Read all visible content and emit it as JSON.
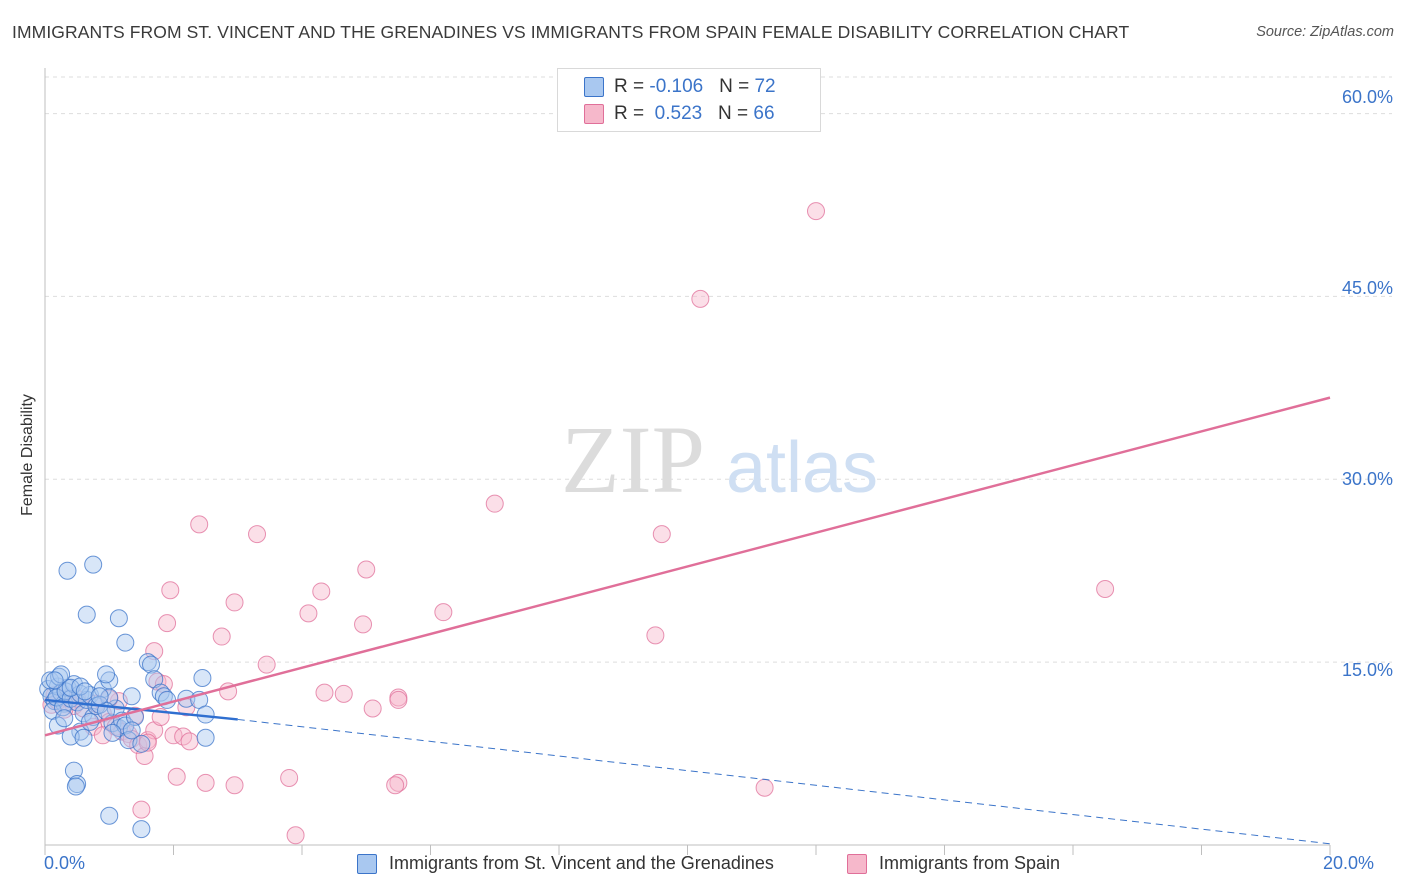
{
  "header": {
    "title": "IMMIGRANTS FROM ST. VINCENT AND THE GRENADINES VS IMMIGRANTS FROM SPAIN FEMALE DISABILITY CORRELATION CHART",
    "source": "Source: ZipAtlas.com"
  },
  "watermark": {
    "zip": "ZIP",
    "atlas": "atlas"
  },
  "legend": {
    "rows": [
      {
        "r_label": "R = ",
        "r_value": "-0.106",
        "n_label": "N = ",
        "n_value": "72",
        "color": "#a9c8f0"
      },
      {
        "r_label": "R = ",
        "r_value": "0.523",
        "n_label": "N = ",
        "n_value": "66",
        "color": "#f6b8cb"
      }
    ]
  },
  "bottom_legend": {
    "series1": "Immigrants from St. Vincent and the Grenadines",
    "series2": "Immigrants from Spain"
  },
  "chart_data": {
    "type": "scatter",
    "title": "IMMIGRANTS FROM ST. VINCENT AND THE GRENADINES VS IMMIGRANTS FROM SPAIN FEMALE DISABILITY CORRELATION CHART",
    "xlabel": "",
    "ylabel": "Female Disability",
    "xlim": [
      0,
      20
    ],
    "ylim": [
      0,
      63
    ],
    "x_tick_labels": [
      "0.0%",
      "20.0%"
    ],
    "y_ticks": [
      15,
      30,
      45,
      60
    ],
    "y_tick_labels": [
      "15.0%",
      "30.0%",
      "45.0%",
      "60.0%"
    ],
    "grid": true,
    "legend_position": "top-center",
    "series": [
      {
        "name": "Immigrants from St. Vincent and the Grenadines",
        "color": "#3b74c9",
        "fill": "#a9c8f0",
        "stats": {
          "R": -0.106,
          "N": 72
        },
        "trend": {
          "x0": 0,
          "y0": 11.9,
          "x1": 3.0,
          "y1": 10.3,
          "dash_to_x": 20.0,
          "dash_to_y": 0.1
        },
        "points": [
          [
            0.05,
            12.8
          ],
          [
            0.1,
            12.2
          ],
          [
            0.15,
            11.8
          ],
          [
            0.2,
            13.0
          ],
          [
            0.25,
            12.5
          ],
          [
            0.3,
            11.6
          ],
          [
            0.35,
            12.9
          ],
          [
            0.08,
            13.5
          ],
          [
            0.12,
            11.0
          ],
          [
            0.18,
            12.1
          ],
          [
            0.22,
            13.8
          ],
          [
            0.28,
            11.3
          ],
          [
            0.32,
            12.6
          ],
          [
            0.4,
            12.0
          ],
          [
            0.45,
            13.2
          ],
          [
            0.5,
            11.7
          ],
          [
            0.55,
            12.4
          ],
          [
            0.6,
            10.8
          ],
          [
            0.65,
            11.9
          ],
          [
            0.7,
            12.3
          ],
          [
            0.75,
            10.5
          ],
          [
            0.8,
            11.4
          ],
          [
            0.9,
            12.8
          ],
          [
            1.0,
            13.5
          ],
          [
            1.05,
            10.0
          ],
          [
            1.1,
            11.2
          ],
          [
            1.15,
            9.6
          ],
          [
            1.2,
            10.2
          ],
          [
            1.25,
            9.8
          ],
          [
            1.3,
            8.6
          ],
          [
            1.4,
            10.5
          ],
          [
            1.5,
            8.3
          ],
          [
            1.6,
            15.0
          ],
          [
            1.65,
            14.8
          ],
          [
            1.7,
            13.6
          ],
          [
            1.8,
            12.5
          ],
          [
            1.85,
            12.2
          ],
          [
            1.9,
            11.9
          ],
          [
            2.2,
            12.0
          ],
          [
            2.4,
            11.9
          ],
          [
            2.45,
            13.7
          ],
          [
            2.5,
            10.7
          ],
          [
            0.35,
            22.5
          ],
          [
            0.75,
            23.0
          ],
          [
            0.65,
            18.9
          ],
          [
            1.15,
            18.6
          ],
          [
            1.25,
            16.6
          ],
          [
            0.95,
            14.0
          ],
          [
            1.0,
            12.1
          ],
          [
            0.85,
            11.5
          ],
          [
            0.55,
            9.3
          ],
          [
            0.4,
            8.9
          ],
          [
            0.6,
            8.8
          ],
          [
            0.2,
            9.8
          ],
          [
            0.3,
            10.4
          ],
          [
            0.7,
            10.1
          ],
          [
            0.95,
            11.0
          ],
          [
            1.35,
            12.2
          ],
          [
            0.45,
            6.1
          ],
          [
            0.5,
            5.0
          ],
          [
            0.48,
            4.8
          ],
          [
            1.0,
            2.4
          ],
          [
            1.5,
            1.3
          ],
          [
            2.5,
            8.8
          ],
          [
            0.25,
            14.0
          ],
          [
            0.15,
            13.5
          ],
          [
            0.4,
            12.9
          ],
          [
            0.55,
            13.0
          ],
          [
            0.62,
            12.6
          ],
          [
            0.85,
            12.2
          ],
          [
            1.05,
            9.2
          ],
          [
            1.35,
            9.4
          ]
        ]
      },
      {
        "name": "Immigrants from Spain",
        "color": "#e06f99",
        "fill": "#f6b8cb",
        "stats": {
          "R": 0.523,
          "N": 66
        },
        "trend": {
          "x0": 0,
          "y0": 9.0,
          "x1": 20.0,
          "y1": 36.7
        },
        "points": [
          [
            12.0,
            52.0
          ],
          [
            10.2,
            44.8
          ],
          [
            7.0,
            28.0
          ],
          [
            9.6,
            25.5
          ],
          [
            2.4,
            26.3
          ],
          [
            3.3,
            25.5
          ],
          [
            5.0,
            22.6
          ],
          [
            16.5,
            21.0
          ],
          [
            1.95,
            20.9
          ],
          [
            2.95,
            19.9
          ],
          [
            4.3,
            20.8
          ],
          [
            4.1,
            19.0
          ],
          [
            6.2,
            19.1
          ],
          [
            1.9,
            18.2
          ],
          [
            4.95,
            18.1
          ],
          [
            9.5,
            17.2
          ],
          [
            2.75,
            17.1
          ],
          [
            1.7,
            15.9
          ],
          [
            3.45,
            14.8
          ],
          [
            1.75,
            13.4
          ],
          [
            2.85,
            12.6
          ],
          [
            4.35,
            12.5
          ],
          [
            4.65,
            12.4
          ],
          [
            5.5,
            12.1
          ],
          [
            5.5,
            11.9
          ],
          [
            5.1,
            11.2
          ],
          [
            2.2,
            11.3
          ],
          [
            0.1,
            11.5
          ],
          [
            0.2,
            11.8
          ],
          [
            0.35,
            12.0
          ],
          [
            0.45,
            11.4
          ],
          [
            0.6,
            11.2
          ],
          [
            0.8,
            11.6
          ],
          [
            0.9,
            10.8
          ],
          [
            1.0,
            10.1
          ],
          [
            1.1,
            9.7
          ],
          [
            1.2,
            9.3
          ],
          [
            1.3,
            9.1
          ],
          [
            1.35,
            8.7
          ],
          [
            1.45,
            8.2
          ],
          [
            1.55,
            7.3
          ],
          [
            1.6,
            8.6
          ],
          [
            1.7,
            9.4
          ],
          [
            1.8,
            10.5
          ],
          [
            1.85,
            13.2
          ],
          [
            0.75,
            9.7
          ],
          [
            0.9,
            9.0
          ],
          [
            2.0,
            9.0
          ],
          [
            2.15,
            8.9
          ],
          [
            2.25,
            8.5
          ],
          [
            0.15,
            12.3
          ],
          [
            0.3,
            11.1
          ],
          [
            1.15,
            11.8
          ],
          [
            1.4,
            10.6
          ],
          [
            1.6,
            8.4
          ],
          [
            2.05,
            5.6
          ],
          [
            2.5,
            5.1
          ],
          [
            2.95,
            4.9
          ],
          [
            3.8,
            5.5
          ],
          [
            5.5,
            5.1
          ],
          [
            5.45,
            4.9
          ],
          [
            11.2,
            4.7
          ],
          [
            1.5,
            2.9
          ],
          [
            3.9,
            0.8
          ],
          [
            0.5,
            12.0
          ],
          [
            1.0,
            12.0
          ]
        ]
      }
    ]
  }
}
